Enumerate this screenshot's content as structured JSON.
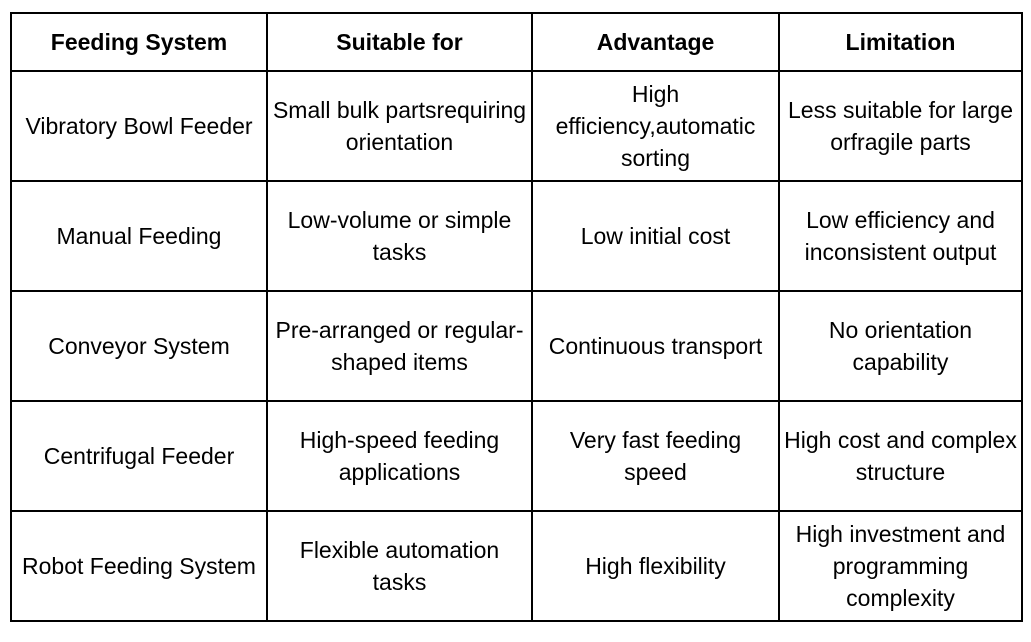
{
  "table": {
    "header": [
      "Feeding System",
      "Suitable for",
      "Advantage",
      "Limitation"
    ],
    "rows": [
      [
        "Vibratory Bowl Feeder",
        "Small bulk partsrequiring orientation",
        "High efficiency,automatic sorting",
        "Less suitable for large orfragile parts"
      ],
      [
        "Manual Feeding",
        "Low-volume or simple tasks",
        "Low initial cost",
        "Low efficiency and inconsistent output"
      ],
      [
        "Conveyor System",
        "Pre-arranged or regular-shaped items",
        "Continuous transport",
        "No orientation capability"
      ],
      [
        "Centrifugal Feeder",
        "High-speed feeding applications",
        "Very fast feeding speed",
        "High cost and complex structure"
      ],
      [
        "Robot Feeding System",
        "Flexible automation tasks",
        "High flexibility",
        "High investment and programming complexity"
      ]
    ]
  }
}
